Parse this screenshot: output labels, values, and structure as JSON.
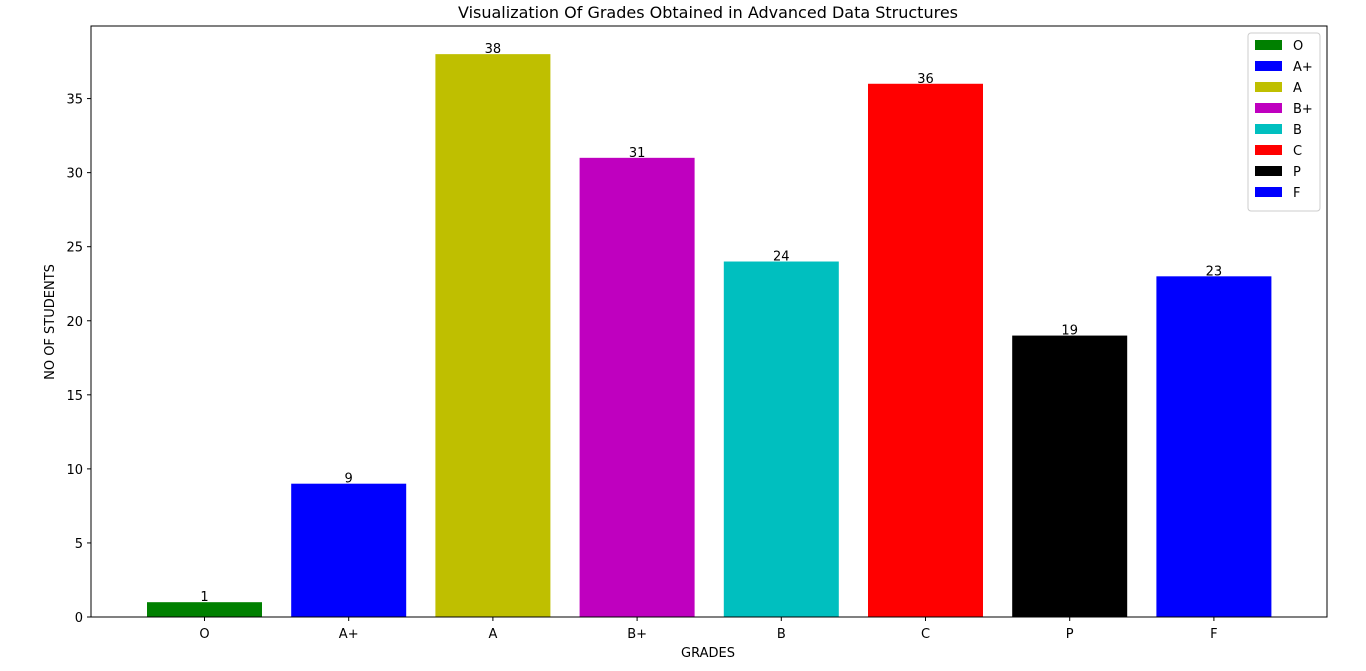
{
  "chart_data": {
    "type": "bar",
    "title": "Visualization Of Grades Obtained in Advanced Data Structures",
    "xlabel": "GRADES",
    "ylabel": "NO OF STUDENTS",
    "categories": [
      "O",
      "A+",
      "A",
      "B+",
      "B",
      "C",
      "P",
      "F"
    ],
    "values": [
      1,
      9,
      38,
      31,
      24,
      36,
      19,
      23
    ],
    "colors": [
      "#008000",
      "#0000ff",
      "#bfbf00",
      "#bf00bf",
      "#00bfbf",
      "#ff0000",
      "#000000",
      "#0000ff"
    ],
    "ylim": [
      0,
      39.9
    ],
    "yticks": [
      0,
      5,
      10,
      15,
      20,
      25,
      30,
      35
    ],
    "grid": false,
    "legend": {
      "position": "top-right",
      "entries": [
        "O",
        "A+",
        "A",
        "B+",
        "B",
        "C",
        "P",
        "F"
      ]
    }
  }
}
